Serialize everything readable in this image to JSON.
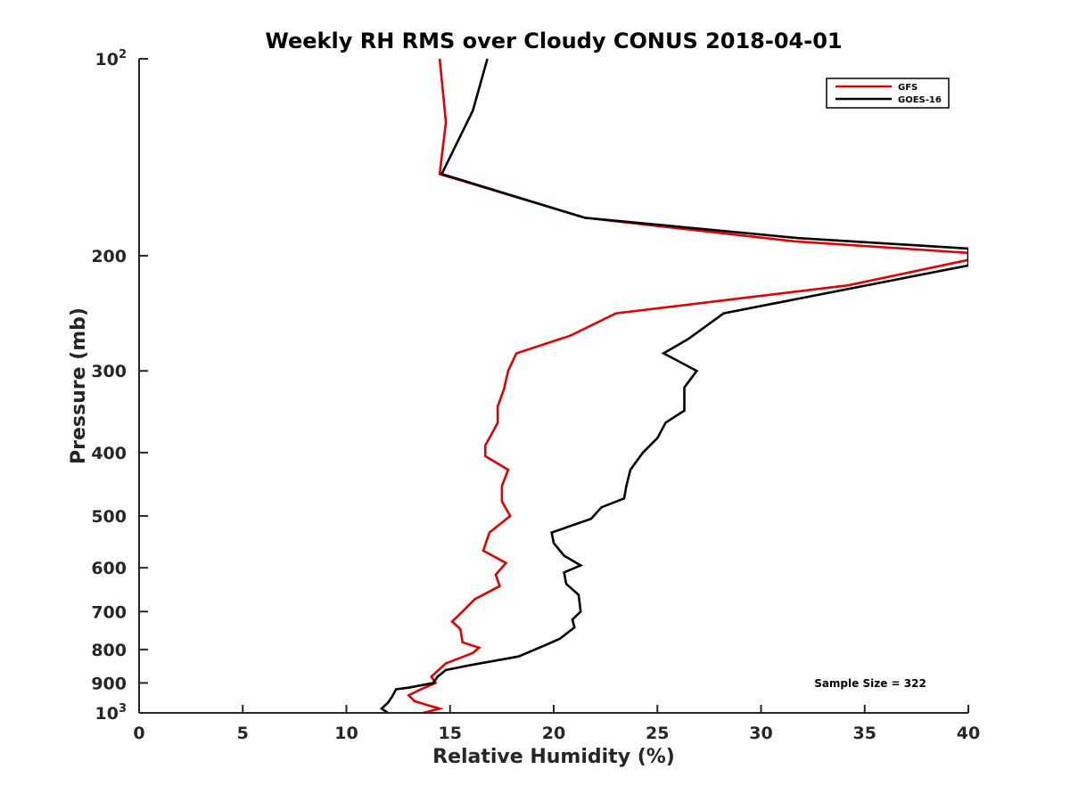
{
  "chart_data": {
    "type": "line",
    "title": "Weekly RH RMS over Cloudy CONUS 2018-04-01",
    "xlabel": "Relative Humidity (%)",
    "ylabel": "Pressure (mb)",
    "xlim": [
      0,
      40
    ],
    "ylim": [
      100,
      1000
    ],
    "y_scale": "log",
    "y_reversed": true,
    "grid": false,
    "legend_position": "top-right",
    "x_ticks": [
      "0",
      "5",
      "10",
      "15",
      "20",
      "25",
      "30",
      "35",
      "40"
    ],
    "y_ticks": [
      {
        "value": 100,
        "base": "10",
        "exp": "2"
      },
      {
        "value": 200,
        "label": "200"
      },
      {
        "value": 300,
        "label": "300"
      },
      {
        "value": 400,
        "label": "400"
      },
      {
        "value": 500,
        "label": "500"
      },
      {
        "value": 600,
        "label": "600"
      },
      {
        "value": 700,
        "label": "700"
      },
      {
        "value": 800,
        "label": "800"
      },
      {
        "value": 900,
        "label": "900"
      },
      {
        "value": 1000,
        "base": "10",
        "exp": "3"
      }
    ],
    "annotation": "Sample Size = 322",
    "series": [
      {
        "name": "GFS",
        "color": "#e00000",
        "points": [
          [
            14.5,
            100
          ],
          [
            14.8,
            125
          ],
          [
            14.5,
            150
          ],
          [
            21.5,
            175
          ],
          [
            31.5,
            190
          ],
          [
            40,
            198
          ],
          [
            40,
            203
          ],
          [
            34.2,
            222
          ],
          [
            23.0,
            245
          ],
          [
            20.8,
            265
          ],
          [
            18.2,
            282
          ],
          [
            17.8,
            300
          ],
          [
            17.6,
            320
          ],
          [
            17.3,
            340
          ],
          [
            17.3,
            360
          ],
          [
            17.0,
            375
          ],
          [
            16.7,
            390
          ],
          [
            16.7,
            405
          ],
          [
            17.8,
            425
          ],
          [
            17.5,
            450
          ],
          [
            17.5,
            475
          ],
          [
            17.9,
            500
          ],
          [
            16.9,
            530
          ],
          [
            16.6,
            565
          ],
          [
            17.7,
            590
          ],
          [
            17.2,
            615
          ],
          [
            17.4,
            640
          ],
          [
            16.2,
            670
          ],
          [
            15.6,
            700
          ],
          [
            15.1,
            725
          ],
          [
            15.5,
            745
          ],
          [
            15.6,
            780
          ],
          [
            16.4,
            795
          ],
          [
            16.1,
            810
          ],
          [
            14.8,
            840
          ],
          [
            14.1,
            880
          ],
          [
            14.3,
            900
          ],
          [
            13.6,
            920
          ],
          [
            13.0,
            940
          ],
          [
            13.3,
            960
          ],
          [
            14.0,
            975
          ],
          [
            14.5,
            985
          ],
          [
            13.7,
            1000
          ]
        ]
      },
      {
        "name": "GOES-16",
        "color": "#000000",
        "points": [
          [
            16.8,
            100
          ],
          [
            16.1,
            120
          ],
          [
            14.6,
            150
          ],
          [
            21.5,
            175
          ],
          [
            31.8,
            188
          ],
          [
            40,
            195
          ],
          [
            40,
            207
          ],
          [
            28.2,
            245
          ],
          [
            26.5,
            268
          ],
          [
            25.3,
            282
          ],
          [
            26.9,
            300
          ],
          [
            26.3,
            318
          ],
          [
            26.3,
            345
          ],
          [
            25.4,
            360
          ],
          [
            25.0,
            380
          ],
          [
            24.3,
            400
          ],
          [
            23.7,
            425
          ],
          [
            23.5,
            450
          ],
          [
            23.4,
            470
          ],
          [
            22.3,
            485
          ],
          [
            21.8,
            505
          ],
          [
            19.9,
            530
          ],
          [
            20.0,
            550
          ],
          [
            20.5,
            575
          ],
          [
            21.3,
            595
          ],
          [
            20.5,
            610
          ],
          [
            20.6,
            635
          ],
          [
            21.2,
            660
          ],
          [
            21.3,
            700
          ],
          [
            20.9,
            720
          ],
          [
            21.0,
            740
          ],
          [
            20.3,
            770
          ],
          [
            19.5,
            790
          ],
          [
            18.3,
            820
          ],
          [
            16.0,
            845
          ],
          [
            14.8,
            860
          ],
          [
            14.4,
            880
          ],
          [
            14.2,
            900
          ],
          [
            13.0,
            915
          ],
          [
            12.4,
            920
          ],
          [
            12.2,
            945
          ],
          [
            12.0,
            965
          ],
          [
            11.7,
            985
          ],
          [
            12.0,
            1000
          ]
        ]
      }
    ]
  }
}
